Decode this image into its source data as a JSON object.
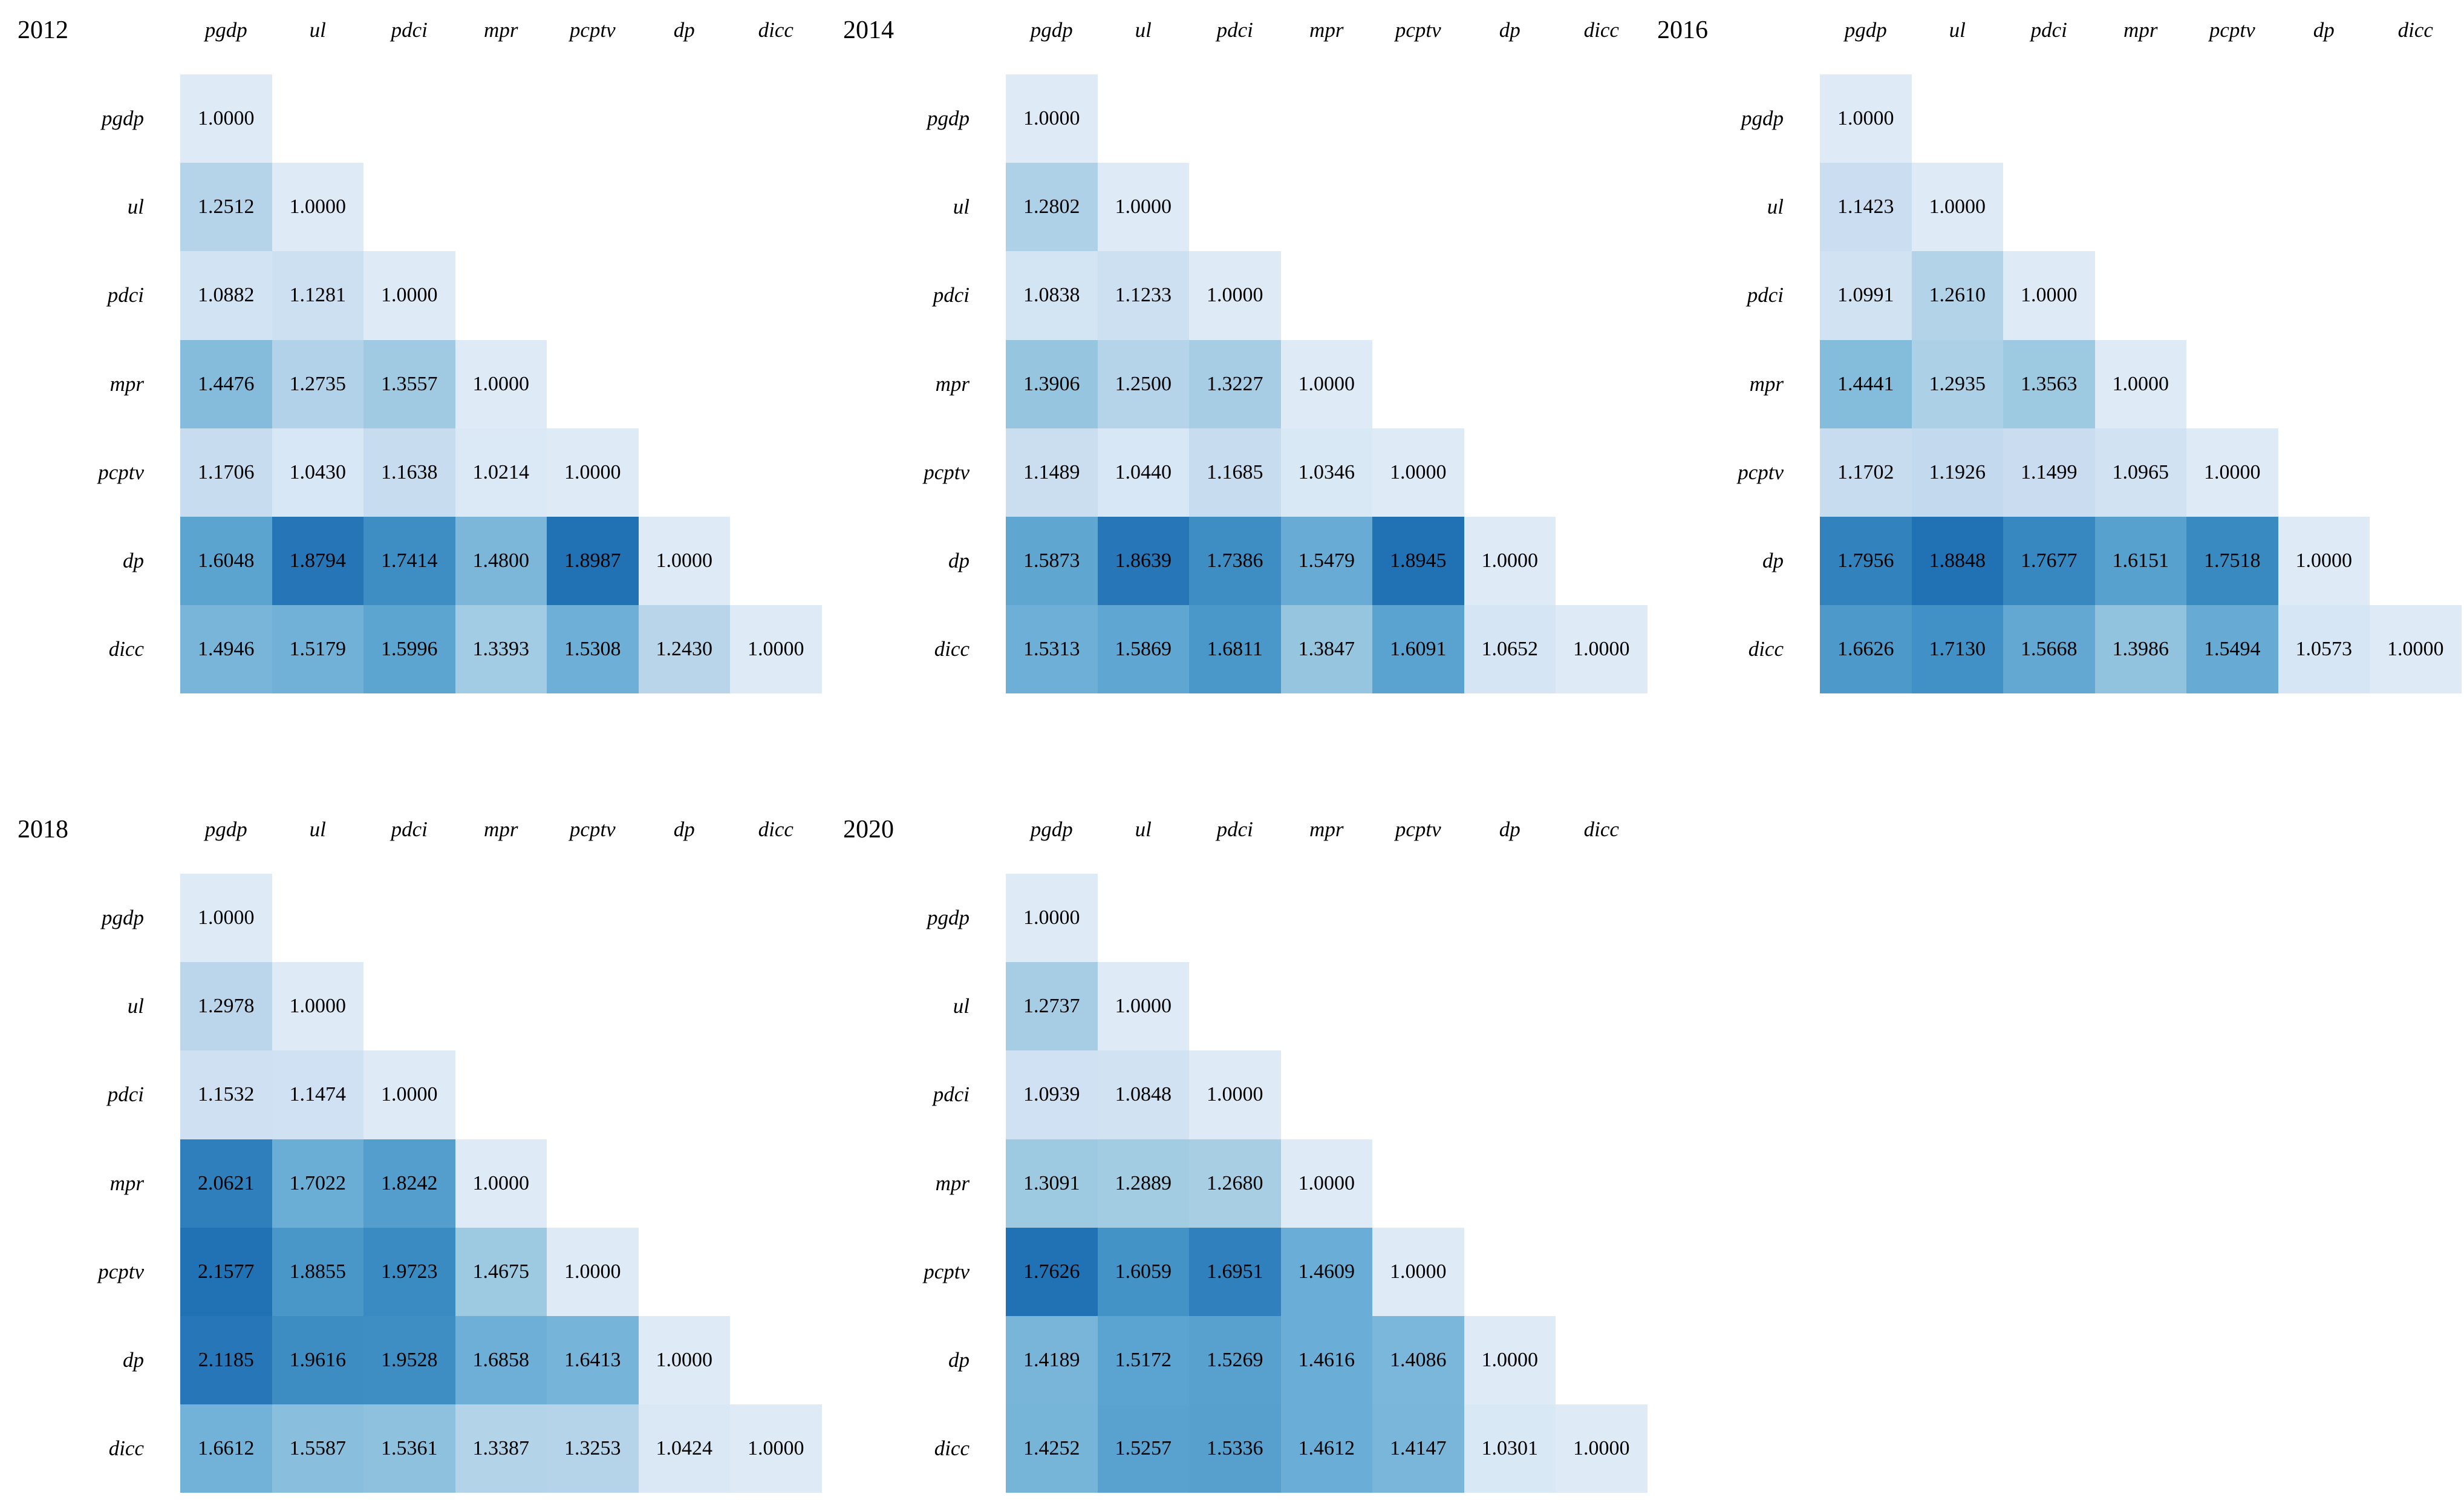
{
  "page": {
    "background": "#ffffff",
    "text_color": "#000000"
  },
  "colors": {
    "cell_min": "#deebf7",
    "cell_max": "#2171b5",
    "ramp": [
      "#deebf7",
      "#c6dbef",
      "#9ecae1",
      "#6baed6",
      "#4292c6",
      "#2171b5"
    ],
    "empty": "#ffffff"
  },
  "chart_data": [
    {
      "type": "heatmap",
      "year": "2012",
      "shape": "lower-triangular",
      "color_scale": "per-matrix min 1.0 (lightest) to max (darkest)",
      "columns": [
        "pgdp",
        "ul",
        "pdci",
        "mpr",
        "pcptv",
        "dp",
        "dicc"
      ],
      "rows": [
        "pgdp",
        "ul",
        "pdci",
        "mpr",
        "pcptv",
        "dp",
        "dicc"
      ],
      "values": [
        [
          "1.0000"
        ],
        [
          "1.2512",
          "1.0000"
        ],
        [
          "1.0882",
          "1.1281",
          "1.0000"
        ],
        [
          "1.4476",
          "1.2735",
          "1.3557",
          "1.0000"
        ],
        [
          "1.1706",
          "1.0430",
          "1.1638",
          "1.0214",
          "1.0000"
        ],
        [
          "1.6048",
          "1.8794",
          "1.7414",
          "1.4800",
          "1.8987",
          "1.0000"
        ],
        [
          "1.4946",
          "1.5179",
          "1.5996",
          "1.3393",
          "1.5308",
          "1.2430",
          "1.0000"
        ]
      ]
    },
    {
      "type": "heatmap",
      "year": "2014",
      "shape": "lower-triangular",
      "color_scale": "per-matrix min 1.0 (lightest) to max (darkest)",
      "columns": [
        "pgdp",
        "ul",
        "pdci",
        "mpr",
        "pcptv",
        "dp",
        "dicc"
      ],
      "rows": [
        "pgdp",
        "ul",
        "pdci",
        "mpr",
        "pcptv",
        "dp",
        "dicc"
      ],
      "values": [
        [
          "1.0000"
        ],
        [
          "1.2802",
          "1.0000"
        ],
        [
          "1.0838",
          "1.1233",
          "1.0000"
        ],
        [
          "1.3906",
          "1.2500",
          "1.3227",
          "1.0000"
        ],
        [
          "1.1489",
          "1.0440",
          "1.1685",
          "1.0346",
          "1.0000"
        ],
        [
          "1.5873",
          "1.8639",
          "1.7386",
          "1.5479",
          "1.8945",
          "1.0000"
        ],
        [
          "1.5313",
          "1.5869",
          "1.6811",
          "1.3847",
          "1.6091",
          "1.0652",
          "1.0000"
        ]
      ]
    },
    {
      "type": "heatmap",
      "year": "2016",
      "shape": "lower-triangular",
      "color_scale": "per-matrix min 1.0 (lightest) to max (darkest)",
      "columns": [
        "pgdp",
        "ul",
        "pdci",
        "mpr",
        "pcptv",
        "dp",
        "dicc"
      ],
      "rows": [
        "pgdp",
        "ul",
        "pdci",
        "mpr",
        "pcptv",
        "dp",
        "dicc"
      ],
      "values": [
        [
          "1.0000"
        ],
        [
          "1.1423",
          "1.0000"
        ],
        [
          "1.0991",
          "1.2610",
          "1.0000"
        ],
        [
          "1.4441",
          "1.2935",
          "1.3563",
          "1.0000"
        ],
        [
          "1.1702",
          "1.1926",
          "1.1499",
          "1.0965",
          "1.0000"
        ],
        [
          "1.7956",
          "1.8848",
          "1.7677",
          "1.6151",
          "1.7518",
          "1.0000"
        ],
        [
          "1.6626",
          "1.7130",
          "1.5668",
          "1.3986",
          "1.5494",
          "1.0573",
          "1.0000"
        ]
      ]
    },
    {
      "type": "heatmap",
      "year": "2018",
      "shape": "lower-triangular",
      "color_scale": "per-matrix min 1.0 (lightest) to max (darkest)",
      "columns": [
        "pgdp",
        "ul",
        "pdci",
        "mpr",
        "pcptv",
        "dp",
        "dicc"
      ],
      "rows": [
        "pgdp",
        "ul",
        "pdci",
        "mpr",
        "pcptv",
        "dp",
        "dicc"
      ],
      "values": [
        [
          "1.0000"
        ],
        [
          "1.2978",
          "1.0000"
        ],
        [
          "1.1532",
          "1.1474",
          "1.0000"
        ],
        [
          "2.0621",
          "1.7022",
          "1.8242",
          "1.0000"
        ],
        [
          "2.1577",
          "1.8855",
          "1.9723",
          "1.4675",
          "1.0000"
        ],
        [
          "2.1185",
          "1.9616",
          "1.9528",
          "1.6858",
          "1.6413",
          "1.0000"
        ],
        [
          "1.6612",
          "1.5587",
          "1.5361",
          "1.3387",
          "1.3253",
          "1.0424",
          "1.0000"
        ]
      ]
    },
    {
      "type": "heatmap",
      "year": "2020",
      "shape": "lower-triangular",
      "color_scale": "per-matrix min 1.0 (lightest) to max (darkest)",
      "columns": [
        "pgdp",
        "ul",
        "pdci",
        "mpr",
        "pcptv",
        "dp",
        "dicc"
      ],
      "rows": [
        "pgdp",
        "ul",
        "pdci",
        "mpr",
        "pcptv",
        "dp",
        "dicc"
      ],
      "values": [
        [
          "1.0000"
        ],
        [
          "1.2737",
          "1.0000"
        ],
        [
          "1.0939",
          "1.0848",
          "1.0000"
        ],
        [
          "1.3091",
          "1.2889",
          "1.2680",
          "1.0000"
        ],
        [
          "1.7626",
          "1.6059",
          "1.6951",
          "1.4609",
          "1.0000"
        ],
        [
          "1.4189",
          "1.5172",
          "1.5269",
          "1.4616",
          "1.4086",
          "1.0000"
        ],
        [
          "1.4252",
          "1.5257",
          "1.5336",
          "1.4612",
          "1.4147",
          "1.0301",
          "1.0000"
        ]
      ]
    }
  ]
}
